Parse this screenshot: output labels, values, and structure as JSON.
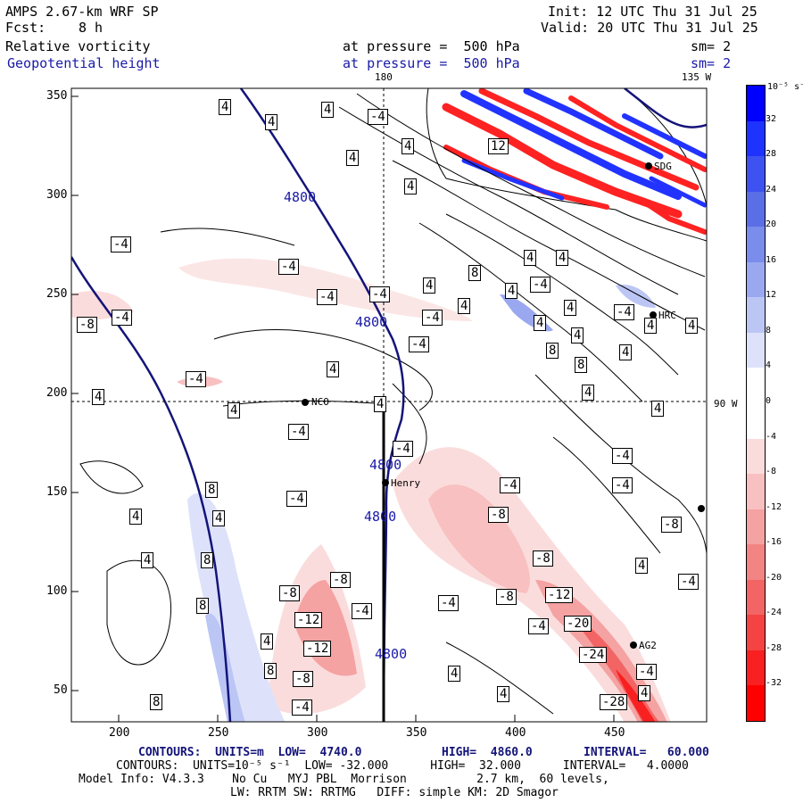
{
  "header": {
    "model": "AMPS 2.67-km WRF SP",
    "init": "Init: 12 UTC Thu 31 Jul 25",
    "fcst_label": "Fcst:",
    "fcst_value": "8 h",
    "valid": "Valid: 20 UTC Thu 31 Jul 25",
    "field1_name": "Relative vorticity",
    "field1_level": "at pressure =  500 hPa",
    "field1_sm": "sm= 2",
    "field2_name": "Geopotential height",
    "field2_level": "at pressure =  500 hPa",
    "field2_sm": "sm= 2"
  },
  "map": {
    "top_label_180": "180",
    "top_label_135w": "135 W",
    "right_label_90w": "90 W",
    "x_ticks": [
      "200",
      "250",
      "300",
      "350",
      "400",
      "450"
    ],
    "y_ticks": [
      "350",
      "300",
      "250",
      "200",
      "150",
      "100",
      "50"
    ],
    "stations": [
      {
        "name": "NCO"
      },
      {
        "name": "Henry"
      },
      {
        "name": "HRC"
      },
      {
        "name": "SDG"
      },
      {
        "name": "AG2"
      }
    ],
    "height_contour_label": "4800",
    "vort_labels": {
      "pos4": "4",
      "pos8": "8",
      "pos12": "12",
      "neg4": "-4",
      "neg8": "-8",
      "neg12": "-12",
      "neg20": "-20",
      "neg24": "-24",
      "neg28": "-28"
    },
    "colors": {
      "height_contour": "#14147a",
      "positive_vorticity": "#2233ff",
      "negative_vorticity": "#ff2222"
    }
  },
  "colorbar": {
    "units": "10⁻⁵ s⁻¹",
    "labels": [
      "32",
      "28",
      "24",
      "20",
      "16",
      "12",
      "8",
      "4",
      "0",
      "-4",
      "-8",
      "-12",
      "-16",
      "-20",
      "-24",
      "-28",
      "-32"
    ],
    "colors": [
      "#0000ff",
      "#1f33ff",
      "#3d52f0",
      "#5a6fe6",
      "#7a8cec",
      "#9aa8f0",
      "#bcc6f5",
      "#dde2fa",
      "#ffffff",
      "#ffffff",
      "#fbdcdc",
      "#f8c0c0",
      "#f5a2a2",
      "#f28484",
      "#f36464",
      "#f54242",
      "#f82020",
      "#ff0000"
    ]
  },
  "footer": {
    "line1_pre": "CONTOURS:  UNITS=m  LOW=  4740.0",
    "line1_high": "HIGH=  4860.0",
    "line1_int": "INTERVAL=   60.000",
    "line2": "CONTOURS:  UNITS=10⁻⁵ s⁻¹  LOW= -32.000      HIGH=  32.000      INTERVAL=   4.0000",
    "line3": "Model Info: V4.3.3    No Cu   MYJ PBL  Morrison          2.7 km,  60 levels,",
    "line4": "LW: RRTM SW: RRTMG   DIFF: simple KM: 2D Smagor"
  }
}
